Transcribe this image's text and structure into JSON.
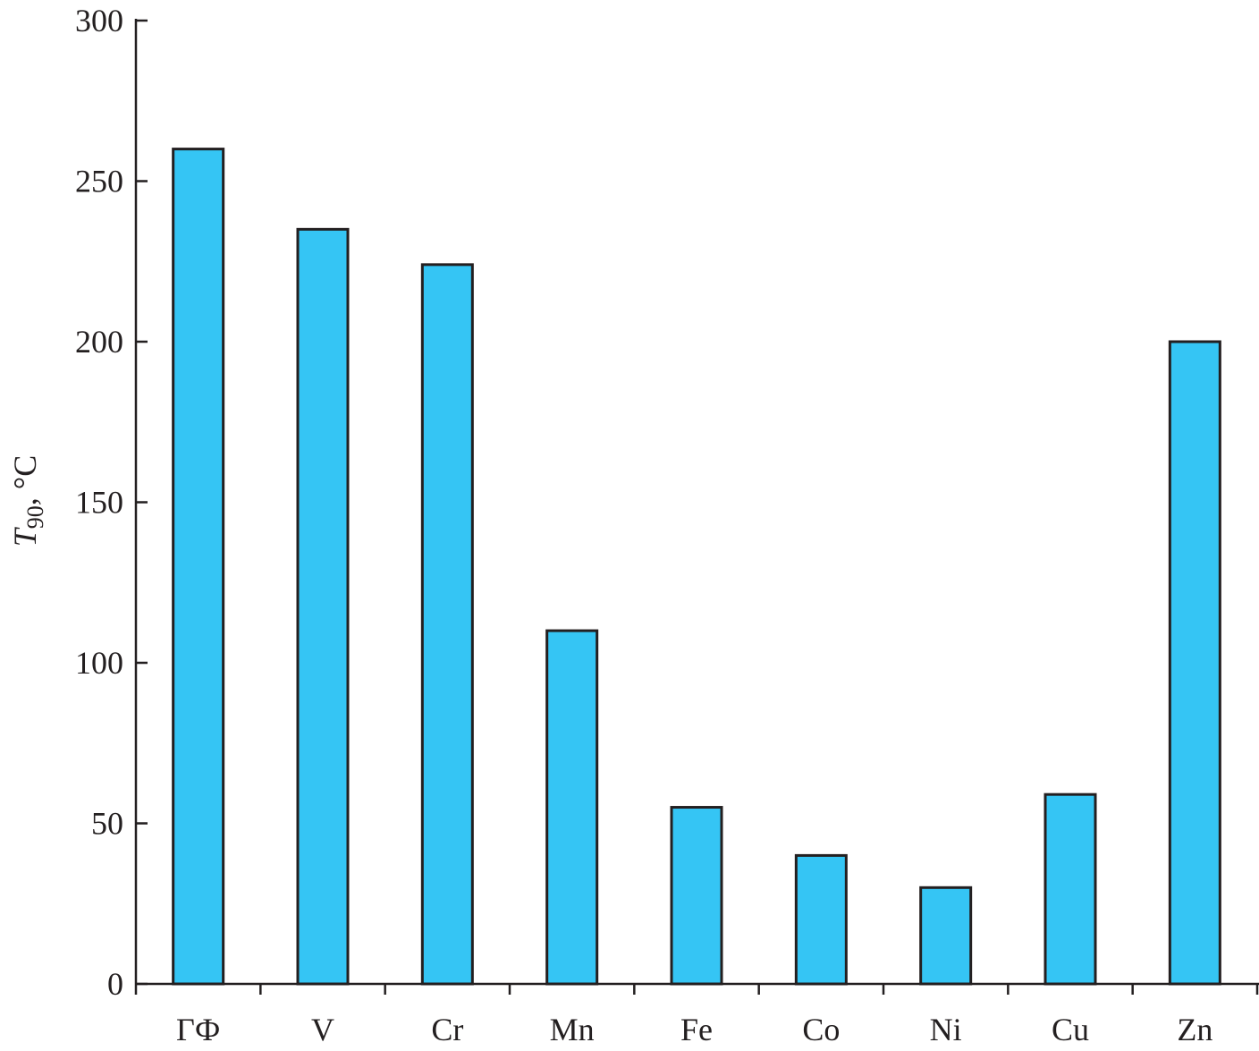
{
  "chart_data": {
    "type": "bar",
    "title": "",
    "xlabel": "",
    "ylabel": {
      "main": "T",
      "subscript": "90",
      "suffix": ", °C"
    },
    "categories": [
      "ГФ",
      "V",
      "Cr",
      "Mn",
      "Fe",
      "Co",
      "Ni",
      "Cu",
      "Zn"
    ],
    "values": [
      260,
      235,
      224,
      110,
      55,
      40,
      30,
      59,
      200
    ],
    "ylim": [
      0,
      300
    ],
    "yticks": [
      0,
      50,
      100,
      150,
      200,
      250,
      300
    ],
    "grid": false,
    "bar_color": "#35c5f4",
    "bar_edge_color": "#231f20"
  }
}
